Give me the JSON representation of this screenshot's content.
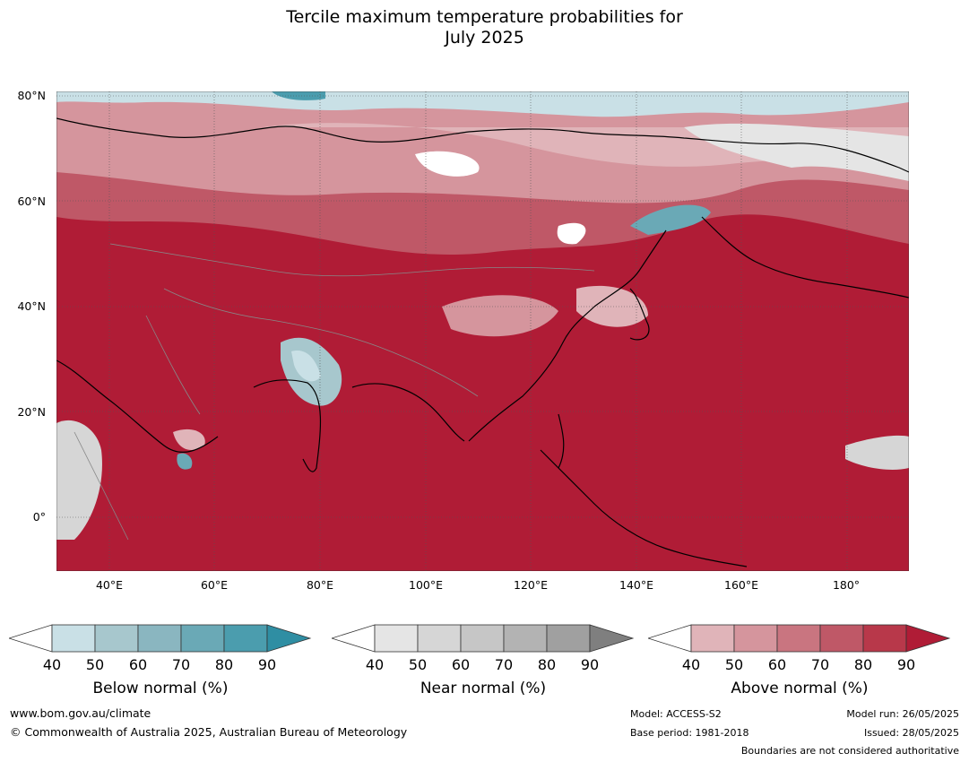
{
  "title_line1": "Tercile maximum temperature probabilities for",
  "title_line2": "July 2025",
  "lat_labels": [
    "80°N",
    "60°N",
    "40°N",
    "20°N",
    "0°"
  ],
  "lon_labels": [
    "40°E",
    "60°E",
    "80°E",
    "100°E",
    "120°E",
    "140°E",
    "160°E",
    "180°"
  ],
  "colorbars": [
    {
      "label": "Below normal (%)",
      "ticks": [
        "40",
        "50",
        "60",
        "70",
        "80",
        "90"
      ],
      "colors": [
        "#ffffff",
        "#c9e0e6",
        "#a7c7cd",
        "#8ab6c0",
        "#6aa9b6",
        "#4b9dae",
        "#2f8ea3"
      ]
    },
    {
      "label": "Near normal (%)",
      "ticks": [
        "40",
        "50",
        "60",
        "70",
        "80",
        "90"
      ],
      "colors": [
        "#ffffff",
        "#e5e5e5",
        "#d6d6d6",
        "#c6c6c6",
        "#b3b3b3",
        "#a0a0a0",
        "#7f7f7f"
      ]
    },
    {
      "label": "Above normal (%)",
      "ticks": [
        "40",
        "50",
        "60",
        "70",
        "80",
        "90"
      ],
      "colors": [
        "#ffffff",
        "#e0b4b9",
        "#d5959d",
        "#c97580",
        "#bf5867",
        "#b8384a",
        "#b01c36"
      ]
    }
  ],
  "footer": {
    "url": "www.bom.gov.au/climate",
    "copyright": "© Commonwealth of Australia 2025, Australian Bureau of Meteorology",
    "model": "Model: ACCESS-S2",
    "base_period": "Base period: 1981-2018",
    "model_run": "Model run: 26/05/2025",
    "issued": "Issued: 28/05/2025",
    "boundaries": "Boundaries are not considered authoritative"
  }
}
